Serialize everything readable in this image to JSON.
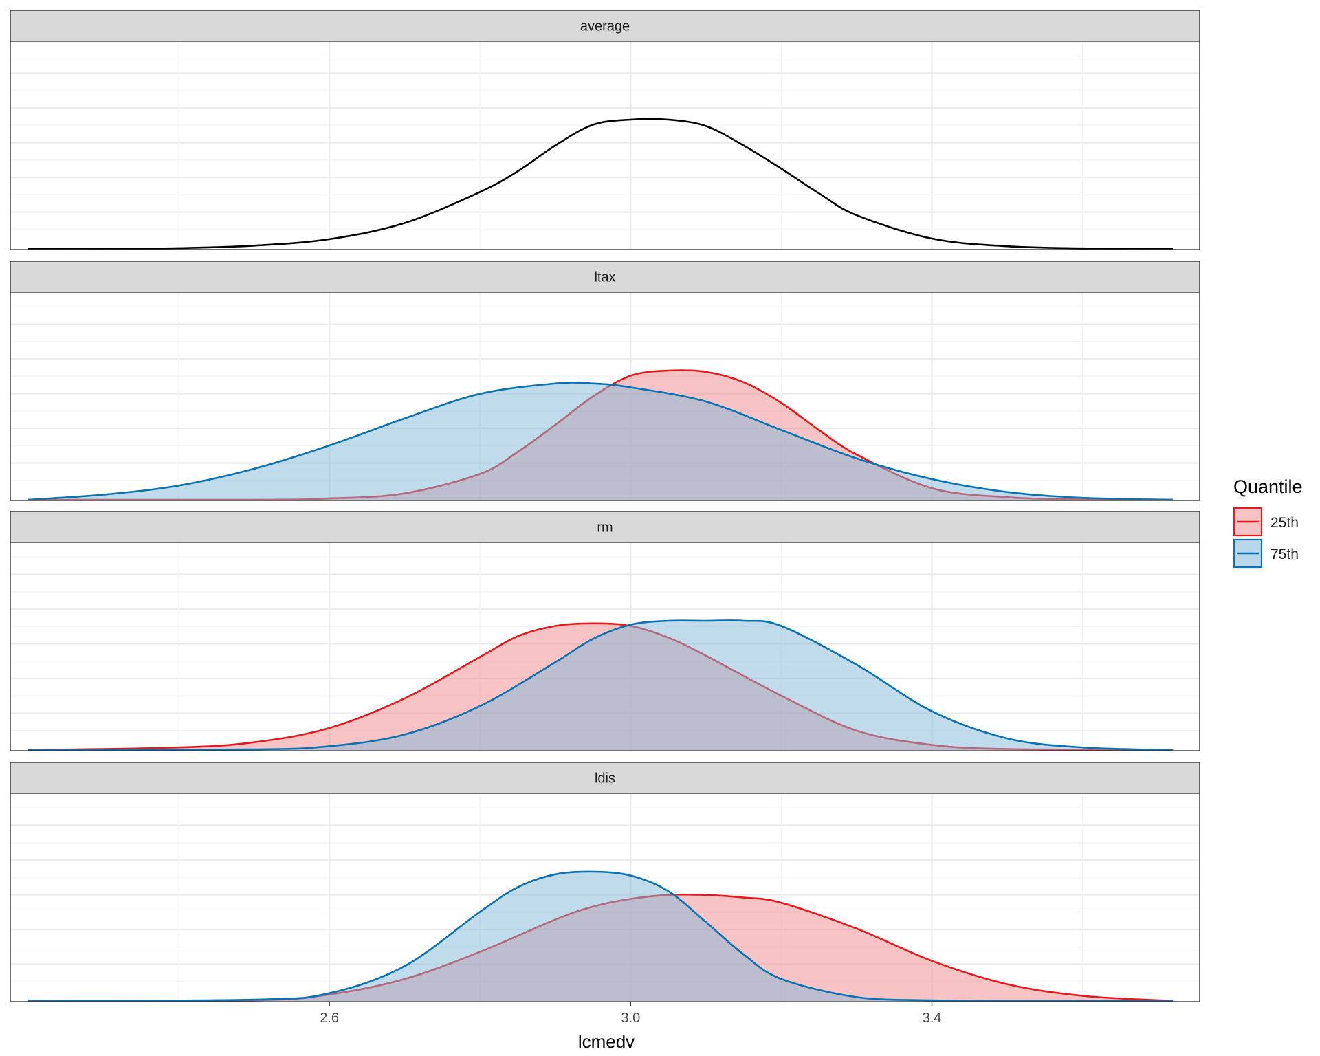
{
  "chart_data": {
    "type": "area",
    "xlabel": "lcmedv",
    "ylabel": "",
    "xlim": [
      2.19,
      3.74
    ],
    "x_ticks": [
      2.6,
      3.0,
      3.4
    ],
    "x_tick_labels": [
      "2.6",
      "3.0",
      "3.4"
    ],
    "y_ticks_shown": false,
    "grid": true,
    "legend": {
      "title": "Quantile",
      "position": "right",
      "entries": [
        {
          "label": "25th",
          "color": "#E41A1C",
          "fill": "#F8C3C4"
        },
        {
          "label": "75th",
          "color": "#0A71B3",
          "fill": "#B8D7EA"
        }
      ]
    },
    "colors": {
      "average_line": "#000000",
      "strip_fill": "#D9D9D9",
      "panel_border": "#333333",
      "grid_major": "#EBEBEB",
      "grid_minor": "#F4F4F4"
    },
    "panels": [
      {
        "strip": "average",
        "series": [
          {
            "name": "average",
            "color": "#000000",
            "filled": false,
            "x": [
              2.2,
              2.3,
              2.4,
              2.5,
              2.6,
              2.7,
              2.8,
              2.85,
              2.9,
              2.95,
              3.0,
              3.05,
              3.1,
              3.15,
              3.2,
              3.25,
              3.3,
              3.4,
              3.5,
              3.6,
              3.72
            ],
            "y": [
              0.0,
              0.001,
              0.006,
              0.025,
              0.075,
              0.2,
              0.44,
              0.6,
              0.8,
              0.96,
              1.0,
              1.0,
              0.95,
              0.8,
              0.62,
              0.43,
              0.26,
              0.08,
              0.02,
              0.004,
              0.0
            ]
          }
        ]
      },
      {
        "strip": "ltax",
        "series": [
          {
            "name": "25th",
            "color": "#E41A1C",
            "filled": true,
            "x": [
              2.2,
              2.5,
              2.6,
              2.7,
              2.8,
              2.85,
              2.9,
              2.95,
              3.0,
              3.05,
              3.1,
              3.15,
              3.2,
              3.25,
              3.3,
              3.4,
              3.5,
              3.6,
              3.72
            ],
            "y": [
              0.0,
              0.0,
              0.01,
              0.05,
              0.2,
              0.37,
              0.58,
              0.8,
              0.96,
              1.0,
              0.99,
              0.91,
              0.75,
              0.54,
              0.35,
              0.09,
              0.02,
              0.003,
              0.0
            ]
          },
          {
            "name": "75th",
            "color": "#0A71B3",
            "filled": true,
            "x": [
              2.2,
              2.3,
              2.4,
              2.5,
              2.6,
              2.7,
              2.8,
              2.9,
              2.95,
              3.0,
              3.1,
              3.2,
              3.3,
              3.4,
              3.5,
              3.6,
              3.72
            ],
            "y": [
              0.0,
              0.04,
              0.11,
              0.24,
              0.42,
              0.63,
              0.82,
              0.9,
              0.9,
              0.87,
              0.76,
              0.54,
              0.32,
              0.16,
              0.06,
              0.015,
              0.0
            ]
          }
        ]
      },
      {
        "strip": "rm",
        "series": [
          {
            "name": "25th",
            "color": "#E41A1C",
            "filled": true,
            "x": [
              2.2,
              2.4,
              2.5,
              2.6,
              2.7,
              2.8,
              2.85,
              2.9,
              2.95,
              3.0,
              3.05,
              3.1,
              3.2,
              3.3,
              3.4,
              3.5,
              3.72
            ],
            "y": [
              0.0,
              0.02,
              0.06,
              0.17,
              0.4,
              0.72,
              0.88,
              0.96,
              0.98,
              0.96,
              0.87,
              0.73,
              0.42,
              0.15,
              0.04,
              0.008,
              0.0
            ]
          },
          {
            "name": "75th",
            "color": "#0A71B3",
            "filled": true,
            "x": [
              2.2,
              2.5,
              2.6,
              2.7,
              2.8,
              2.9,
              2.95,
              3.0,
              3.05,
              3.1,
              3.15,
              3.2,
              3.3,
              3.4,
              3.5,
              3.6,
              3.72
            ],
            "y": [
              0.0,
              0.005,
              0.03,
              0.12,
              0.34,
              0.68,
              0.86,
              0.97,
              1.0,
              1.0,
              1.0,
              0.96,
              0.66,
              0.3,
              0.09,
              0.02,
              0.0
            ]
          }
        ]
      },
      {
        "strip": "ldis",
        "series": [
          {
            "name": "25th",
            "color": "#E41A1C",
            "filled": true,
            "x": [
              2.2,
              2.5,
              2.6,
              2.7,
              2.8,
              2.9,
              2.95,
              3.0,
              3.05,
              3.1,
              3.15,
              3.2,
              3.3,
              3.4,
              3.5,
              3.6,
              3.72
            ],
            "y": [
              0.0,
              0.005,
              0.05,
              0.17,
              0.38,
              0.63,
              0.73,
              0.79,
              0.82,
              0.82,
              0.8,
              0.76,
              0.56,
              0.31,
              0.13,
              0.04,
              0.0
            ]
          },
          {
            "name": "75th",
            "color": "#0A71B3",
            "filled": true,
            "x": [
              2.2,
              2.5,
              2.6,
              2.7,
              2.8,
              2.85,
              2.9,
              2.95,
              3.0,
              3.05,
              3.1,
              3.15,
              3.2,
              3.3,
              3.4,
              3.5,
              3.72
            ],
            "y": [
              0.0,
              0.01,
              0.06,
              0.27,
              0.69,
              0.88,
              0.98,
              1.0,
              0.97,
              0.85,
              0.61,
              0.36,
              0.17,
              0.03,
              0.005,
              0.0,
              0.0
            ]
          }
        ]
      }
    ]
  }
}
